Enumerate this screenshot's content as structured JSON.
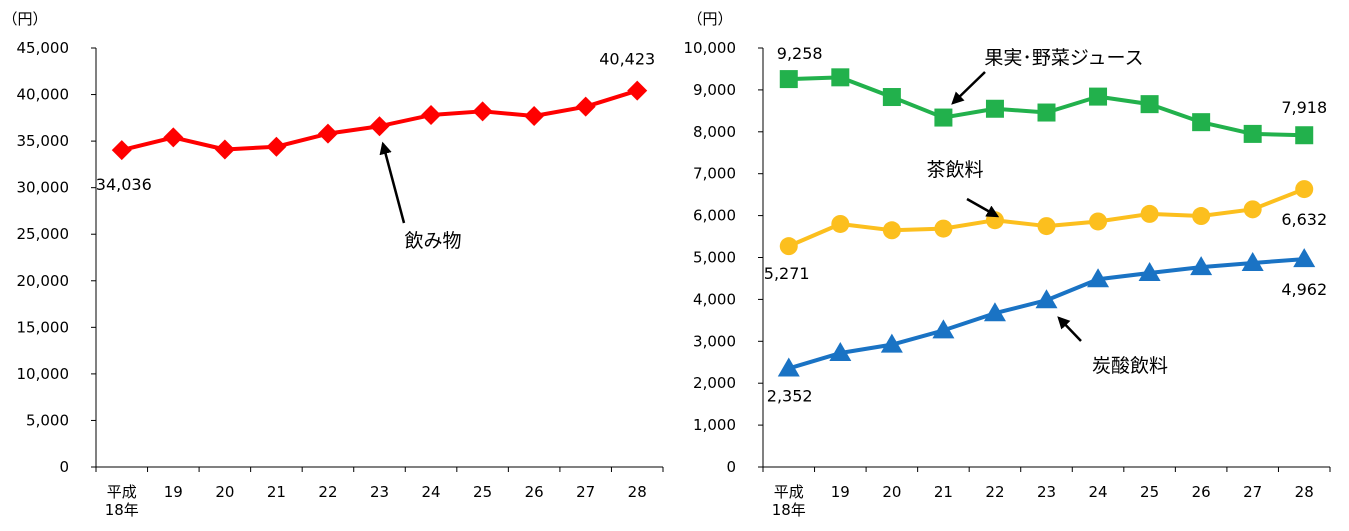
{
  "chart_data": [
    {
      "type": "line",
      "unit_label": "（円）",
      "categories": [
        "平成\n18年",
        "19",
        "20",
        "21",
        "22",
        "23",
        "24",
        "25",
        "26",
        "27",
        "28"
      ],
      "ylim": [
        0,
        45000
      ],
      "yticks": [
        0,
        5000,
        10000,
        15000,
        20000,
        25000,
        30000,
        35000,
        40000,
        45000
      ],
      "ytick_labels": [
        "0",
        "5,000",
        "10,000",
        "15,000",
        "20,000",
        "25,000",
        "30,000",
        "35,000",
        "40,000",
        "45,000"
      ],
      "grid": false,
      "series": [
        {
          "name": "飲み物",
          "color": "#ff0000",
          "marker": "diamond",
          "values": [
            34036,
            35400,
            34100,
            34400,
            35800,
            36600,
            37800,
            38200,
            37700,
            38700,
            40423
          ],
          "data_labels": [
            {
              "index": 0,
              "text": "34,036"
            },
            {
              "index": 10,
              "text": "40,423"
            }
          ]
        }
      ],
      "annotations": [
        {
          "text": "飲み物",
          "arrow_to_index": 5,
          "series": 0
        }
      ]
    },
    {
      "type": "line",
      "unit_label": "（円）",
      "categories": [
        "平成\n18年",
        "19",
        "20",
        "21",
        "22",
        "23",
        "24",
        "25",
        "26",
        "27",
        "28"
      ],
      "ylim": [
        0,
        10000
      ],
      "yticks": [
        0,
        1000,
        2000,
        3000,
        4000,
        5000,
        6000,
        7000,
        8000,
        9000,
        10000
      ],
      "ytick_labels": [
        "0",
        "1,000",
        "2,000",
        "3,000",
        "4,000",
        "5,000",
        "6,000",
        "7,000",
        "8,000",
        "9,000",
        "10,000"
      ],
      "grid": false,
      "series": [
        {
          "name": "果実･野菜ジュース",
          "color": "#22b14c",
          "marker": "square",
          "values": [
            9258,
            9300,
            8830,
            8340,
            8550,
            8460,
            8840,
            8660,
            8230,
            7950,
            7918
          ],
          "data_labels": [
            {
              "index": 0,
              "text": "9,258"
            },
            {
              "index": 10,
              "text": "7,918"
            }
          ]
        },
        {
          "name": "茶飲料",
          "color": "#fcbf1e",
          "marker": "circle",
          "values": [
            5271,
            5800,
            5650,
            5690,
            5890,
            5750,
            5860,
            6040,
            5990,
            6150,
            6632
          ],
          "data_labels": [
            {
              "index": 0,
              "text": "5,271"
            },
            {
              "index": 10,
              "text": "6,632"
            }
          ]
        },
        {
          "name": "炭酸飲料",
          "color": "#1a73c4",
          "marker": "triangle",
          "values": [
            2352,
            2720,
            2920,
            3260,
            3670,
            3980,
            4480,
            4630,
            4770,
            4870,
            4962
          ],
          "data_labels": [
            {
              "index": 0,
              "text": "2,352"
            },
            {
              "index": 10,
              "text": "4,962"
            }
          ]
        }
      ],
      "annotations": [
        {
          "text": "果実･野菜ジュース",
          "arrow_to_index": 3,
          "series": 0
        },
        {
          "text": "茶飲料",
          "arrow_to_index": 4,
          "series": 1
        },
        {
          "text": "炭酸飲料",
          "arrow_to_index": 5,
          "series": 2
        }
      ]
    }
  ]
}
